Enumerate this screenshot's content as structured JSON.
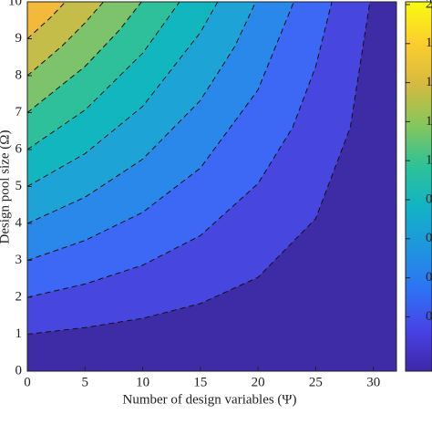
{
  "chart_data": {
    "type": "contour",
    "xlabel": "Number of design variables (Ψ)",
    "ylabel": "Design pool size (Ω)",
    "xlim": [
      0,
      32
    ],
    "ylim": [
      0,
      10
    ],
    "xticks": [
      0,
      5,
      10,
      15,
      20,
      25,
      30
    ],
    "yticks": [
      0,
      1,
      2,
      3,
      4,
      5,
      6,
      7,
      8,
      9,
      10
    ],
    "fills": [
      "#3e2ca6",
      "#4746de",
      "#3d68f5",
      "#2a88ea",
      "#1ea3d6",
      "#12b6bf",
      "#2dc09a",
      "#7cc36b",
      "#c4bd4a",
      "#f3b93a"
    ],
    "colorbar_colors": [
      "#3e26a8",
      "#4743e6",
      "#2d73f5",
      "#1f95de",
      "#12b3c6",
      "#2ec297",
      "#86c65c",
      "#d6ba3f",
      "#fcce2e",
      "#f9fb0e"
    ],
    "colorbar_labels": [
      "2",
      "1",
      "1",
      "1",
      "1",
      "0",
      "0",
      "0",
      "0"
    ],
    "contours": [
      {
        "x": [
          0,
          5,
          10,
          15,
          20,
          25,
          28,
          29.7
        ],
        "y": [
          1,
          1.18,
          1.43,
          1.83,
          2.54,
          4.13,
          6.6,
          10
        ]
      },
      {
        "x": [
          0,
          5,
          10,
          15,
          20,
          23,
          25,
          26.4
        ],
        "y": [
          2,
          2.36,
          2.87,
          3.67,
          5.08,
          6.6,
          8.25,
          10
        ]
      },
      {
        "x": [
          0,
          5,
          10,
          15,
          20,
          23.1
        ],
        "y": [
          3,
          3.54,
          4.3,
          5.5,
          7.62,
          10
        ]
      },
      {
        "x": [
          0,
          5,
          10,
          15,
          18,
          19.8
        ],
        "y": [
          4,
          4.71,
          5.74,
          7.33,
          8.8,
          10
        ]
      },
      {
        "x": [
          0,
          5,
          10,
          15,
          16.5
        ],
        "y": [
          5,
          5.89,
          7.17,
          9.17,
          10
        ]
      },
      {
        "x": [
          0,
          5,
          10,
          13.2
        ],
        "y": [
          6,
          7.07,
          8.61,
          10
        ]
      },
      {
        "x": [
          0,
          5,
          8,
          9.9
        ],
        "y": [
          7,
          8.25,
          9.24,
          10
        ]
      },
      {
        "x": [
          0,
          3,
          5,
          6.6
        ],
        "y": [
          8,
          8.8,
          9.43,
          10
        ]
      },
      {
        "x": [
          0,
          2,
          3.3
        ],
        "y": [
          9,
          9.57,
          10
        ]
      }
    ]
  }
}
